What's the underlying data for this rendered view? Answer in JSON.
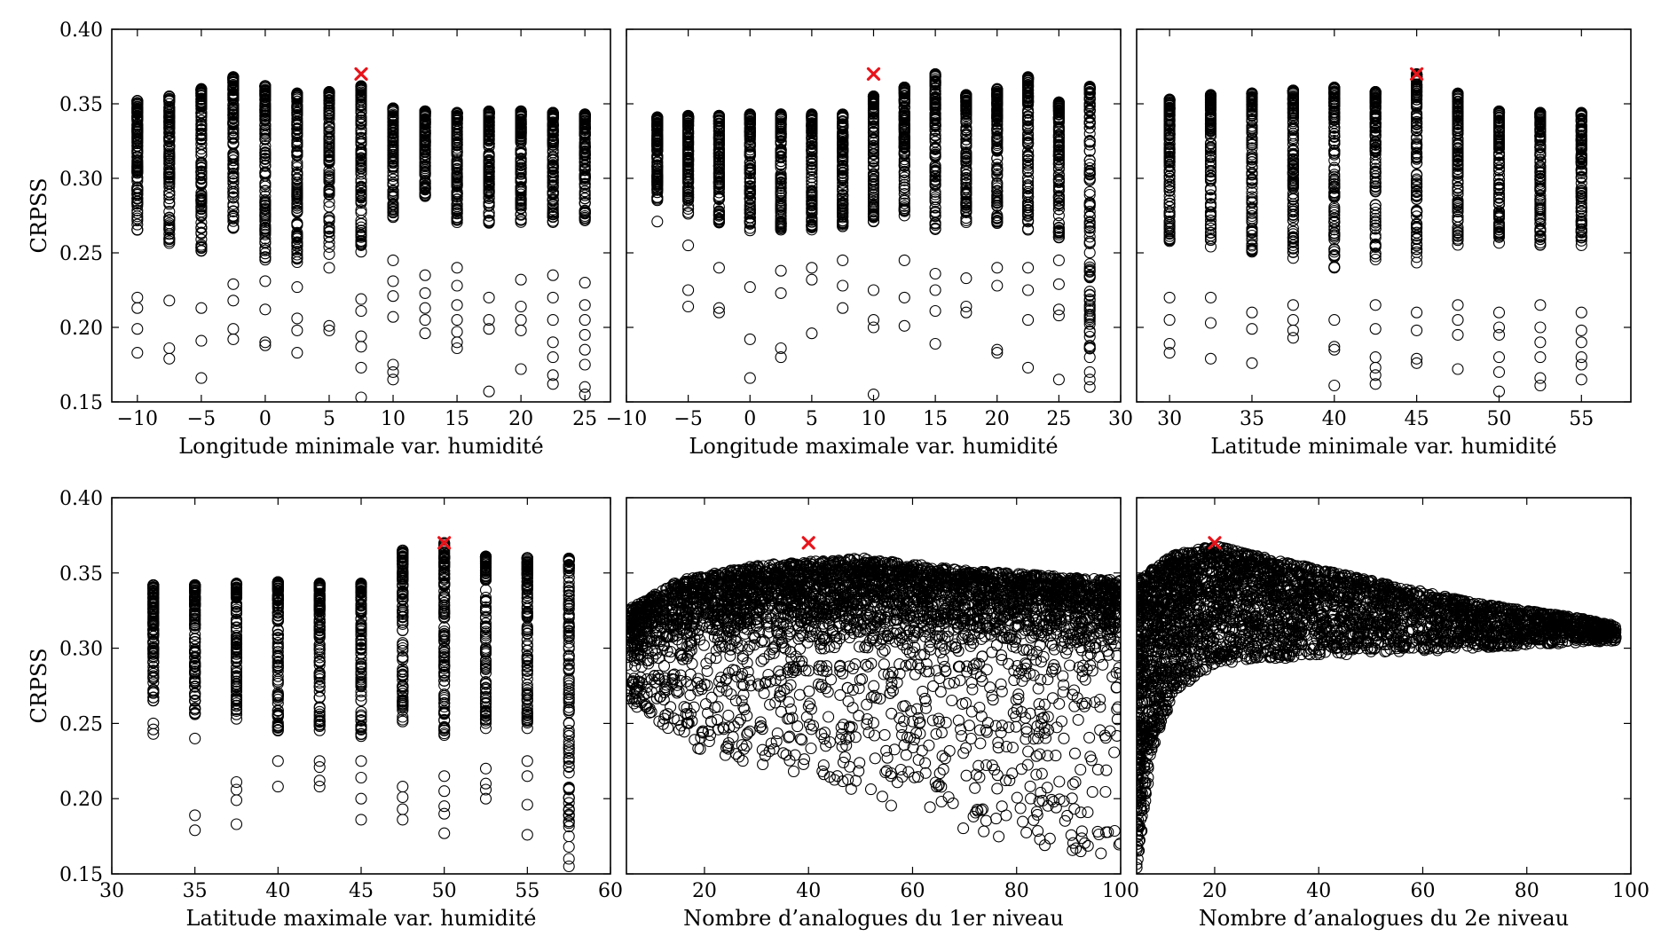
{
  "chart_data": [
    {
      "type": "scatter",
      "xlabel": "Longitude minimale var. humidité",
      "ylabel": "CRPSS",
      "xlim": [
        -12,
        27
      ],
      "ylim": [
        0.15,
        0.4
      ],
      "xticks": [
        -10,
        -5,
        0,
        5,
        10,
        15,
        20,
        25
      ],
      "yticks": [
        0.15,
        0.2,
        0.25,
        0.3,
        0.35,
        0.4
      ],
      "grid": false,
      "x_levels": [
        -10,
        -7.5,
        -5,
        -2.5,
        0,
        2.5,
        5,
        7.5,
        10,
        12.5,
        15,
        17.5,
        20,
        22.5,
        25
      ],
      "dense_top": [
        0.352,
        0.355,
        0.36,
        0.368,
        0.362,
        0.357,
        0.358,
        0.362,
        0.347,
        0.345,
        0.344,
        0.345,
        0.345,
        0.344,
        0.343
      ],
      "dense_bottom": [
        0.265,
        0.255,
        0.25,
        0.26,
        0.245,
        0.24,
        0.245,
        0.25,
        0.27,
        0.285,
        0.27,
        0.27,
        0.27,
        0.27,
        0.27
      ],
      "outliers": [
        [
          0.22,
          0.213,
          0.199,
          0.183
        ],
        [
          0.218,
          0.186,
          0.179
        ],
        [
          0.213,
          0.191,
          0.166
        ],
        [
          0.229,
          0.218,
          0.199,
          0.192
        ],
        [
          0.231,
          0.212,
          0.19,
          0.188
        ],
        [
          0.227,
          0.206,
          0.198,
          0.183
        ],
        [
          0.24,
          0.201,
          0.198
        ],
        [
          0.219,
          0.211,
          0.194,
          0.187,
          0.173,
          0.153
        ],
        [
          0.245,
          0.231,
          0.221,
          0.207,
          0.175,
          0.17,
          0.165
        ],
        [
          0.235,
          0.223,
          0.213,
          0.205,
          0.196
        ],
        [
          0.24,
          0.228,
          0.215,
          0.205,
          0.197,
          0.19,
          0.186
        ],
        [
          0.22,
          0.205,
          0.199,
          0.157
        ],
        [
          0.232,
          0.214,
          0.205,
          0.198,
          0.172
        ],
        [
          0.235,
          0.22,
          0.205,
          0.19,
          0.18,
          0.168,
          0.162
        ],
        [
          0.23,
          0.215,
          0.205,
          0.195,
          0.185,
          0.175,
          0.16,
          0.155
        ]
      ],
      "best_point": [
        7.5,
        0.37
      ]
    },
    {
      "type": "scatter",
      "xlabel": "Longitude maximale var. humidité",
      "ylabel": "",
      "xlim": [
        -10,
        30
      ],
      "ylim": [
        0.15,
        0.4
      ],
      "xticks": [
        -10,
        -5,
        0,
        5,
        10,
        15,
        20,
        25,
        30
      ],
      "yticks": [],
      "grid": false,
      "x_levels": [
        -7.5,
        -5,
        -2.5,
        0,
        2.5,
        5,
        7.5,
        10,
        12.5,
        15,
        17.5,
        20,
        22.5,
        25,
        27.5
      ],
      "dense_top": [
        0.341,
        0.342,
        0.342,
        0.343,
        0.343,
        0.343,
        0.343,
        0.355,
        0.361,
        0.37,
        0.356,
        0.36,
        0.368,
        0.351,
        0.362
      ],
      "dense_bottom": [
        0.285,
        0.275,
        0.27,
        0.265,
        0.265,
        0.265,
        0.265,
        0.27,
        0.275,
        0.265,
        0.27,
        0.265,
        0.265,
        0.26,
        0.185
      ],
      "outliers": [
        [
          0.271
        ],
        [
          0.255,
          0.225,
          0.214
        ],
        [
          0.24,
          0.213,
          0.21
        ],
        [
          0.227,
          0.192,
          0.166
        ],
        [
          0.238,
          0.223,
          0.186,
          0.18
        ],
        [
          0.24,
          0.232,
          0.196
        ],
        [
          0.245,
          0.228,
          0.213
        ],
        [
          0.225,
          0.205,
          0.2,
          0.155
        ],
        [
          0.245,
          0.22,
          0.201
        ],
        [
          0.236,
          0.225,
          0.211,
          0.189
        ],
        [
          0.233,
          0.214,
          0.21
        ],
        [
          0.24,
          0.228,
          0.185,
          0.183
        ],
        [
          0.24,
          0.225,
          0.205,
          0.173
        ],
        [
          0.245,
          0.229,
          0.212,
          0.208,
          0.165
        ],
        [
          0.18,
          0.17,
          0.165,
          0.16
        ]
      ],
      "best_point": [
        10,
        0.37
      ]
    },
    {
      "type": "scatter",
      "xlabel": "Latitude minimale var. humidité",
      "ylabel": "",
      "xlim": [
        28,
        58
      ],
      "ylim": [
        0.15,
        0.4
      ],
      "xticks": [
        30,
        35,
        40,
        45,
        50,
        55
      ],
      "yticks": [],
      "grid": false,
      "x_levels": [
        30,
        32.5,
        35,
        37.5,
        40,
        42.5,
        45,
        47.5,
        50,
        52.5,
        55
      ],
      "dense_top": [
        0.353,
        0.356,
        0.357,
        0.359,
        0.361,
        0.358,
        0.37,
        0.357,
        0.345,
        0.344,
        0.344
      ],
      "dense_bottom": [
        0.255,
        0.25,
        0.25,
        0.245,
        0.24,
        0.245,
        0.24,
        0.255,
        0.255,
        0.255,
        0.255
      ],
      "outliers": [
        [
          0.22,
          0.205,
          0.189,
          0.183
        ],
        [
          0.22,
          0.203,
          0.179
        ],
        [
          0.21,
          0.199,
          0.176
        ],
        [
          0.215,
          0.205,
          0.198,
          0.193
        ],
        [
          0.205,
          0.187,
          0.185,
          0.161
        ],
        [
          0.215,
          0.199,
          0.18,
          0.173,
          0.168,
          0.162
        ],
        [
          0.21,
          0.198,
          0.179,
          0.176
        ],
        [
          0.215,
          0.205,
          0.195,
          0.172
        ],
        [
          0.21,
          0.2,
          0.195,
          0.18,
          0.17,
          0.157
        ],
        [
          0.215,
          0.2,
          0.19,
          0.18,
          0.166,
          0.161
        ],
        [
          0.21,
          0.198,
          0.19,
          0.18,
          0.175,
          0.165
        ]
      ],
      "best_point": [
        45,
        0.37
      ]
    },
    {
      "type": "scatter",
      "xlabel": "Latitude maximale var. humidité",
      "ylabel": "CRPSS",
      "xlim": [
        30,
        60
      ],
      "ylim": [
        0.15,
        0.4
      ],
      "xticks": [
        30,
        35,
        40,
        45,
        50,
        55,
        60
      ],
      "yticks": [
        0.15,
        0.2,
        0.25,
        0.3,
        0.35,
        0.4
      ],
      "grid": false,
      "x_levels": [
        32.5,
        35,
        37.5,
        40,
        42.5,
        45,
        47.5,
        50,
        52.5,
        55,
        57.5
      ],
      "dense_top": [
        0.342,
        0.342,
        0.343,
        0.344,
        0.343,
        0.343,
        0.365,
        0.37,
        0.361,
        0.36,
        0.36
      ],
      "dense_bottom": [
        0.265,
        0.255,
        0.25,
        0.245,
        0.245,
        0.24,
        0.25,
        0.24,
        0.245,
        0.245,
        0.18
      ],
      "outliers": [
        [
          0.25,
          0.246,
          0.243
        ],
        [
          0.24,
          0.189,
          0.179
        ],
        [
          0.211,
          0.206,
          0.199,
          0.183
        ],
        [
          0.225,
          0.208
        ],
        [
          0.225,
          0.221,
          0.212,
          0.208
        ],
        [
          0.225,
          0.214,
          0.2,
          0.186
        ],
        [
          0.208,
          0.201,
          0.193,
          0.186
        ],
        [
          0.215,
          0.205,
          0.195,
          0.19,
          0.177
        ],
        [
          0.22,
          0.21,
          0.206,
          0.2
        ],
        [
          0.225,
          0.215,
          0.196,
          0.176
        ],
        [
          0.175,
          0.168,
          0.16,
          0.155
        ]
      ],
      "best_point": [
        50,
        0.37
      ]
    },
    {
      "type": "scatter",
      "xlabel": "Nombre d’analogues du 1er niveau",
      "ylabel": "",
      "xlim": [
        5,
        100
      ],
      "ylim": [
        0.15,
        0.4
      ],
      "xticks": [
        20,
        40,
        60,
        80,
        100
      ],
      "yticks": [],
      "grid": false,
      "cloud": "band",
      "band_top": [
        [
          5,
          0.325
        ],
        [
          15,
          0.345
        ],
        [
          30,
          0.355
        ],
        [
          50,
          0.36
        ],
        [
          70,
          0.352
        ],
        [
          100,
          0.345
        ]
      ],
      "band_core_bottom": [
        [
          5,
          0.28
        ],
        [
          20,
          0.285
        ],
        [
          50,
          0.29
        ],
        [
          100,
          0.29
        ]
      ],
      "sparse_bottom": [
        [
          5,
          0.265
        ],
        [
          20,
          0.23
        ],
        [
          40,
          0.215
        ],
        [
          60,
          0.19
        ],
        [
          80,
          0.17
        ],
        [
          100,
          0.16
        ]
      ],
      "best_point": [
        40,
        0.37
      ]
    },
    {
      "type": "scatter",
      "xlabel": "Nombre d’analogues du 2e niveau",
      "ylabel": "",
      "xlim": [
        5,
        100
      ],
      "ylim": [
        0.15,
        0.4
      ],
      "xticks": [
        20,
        40,
        60,
        80,
        100
      ],
      "yticks": [],
      "grid": false,
      "cloud": "funnel",
      "band_top": [
        [
          5,
          0.345
        ],
        [
          12,
          0.362
        ],
        [
          20,
          0.368
        ],
        [
          30,
          0.36
        ],
        [
          50,
          0.345
        ],
        [
          70,
          0.33
        ],
        [
          90,
          0.32
        ],
        [
          97,
          0.315
        ]
      ],
      "band_bottom": [
        [
          5,
          0.15
        ],
        [
          8,
          0.23
        ],
        [
          12,
          0.27
        ],
        [
          20,
          0.29
        ],
        [
          40,
          0.295
        ],
        [
          60,
          0.298
        ],
        [
          80,
          0.302
        ],
        [
          97,
          0.305
        ]
      ],
      "best_point": [
        20,
        0.37
      ]
    }
  ]
}
